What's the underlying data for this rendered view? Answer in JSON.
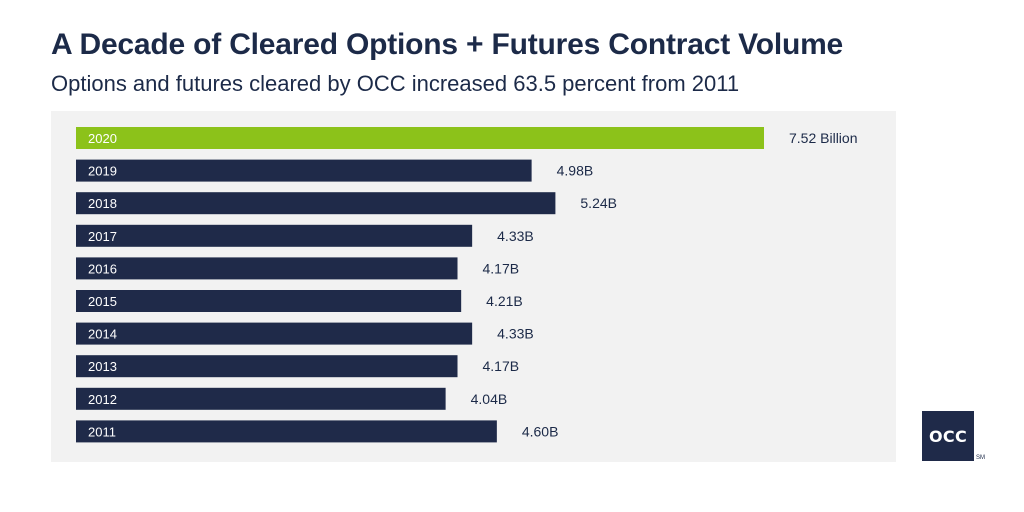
{
  "header": {
    "title": "A Decade of Cleared Options + Futures Contract Volume",
    "subtitle": "Options and futures cleared by OCC increased 63.5 percent from 2011"
  },
  "logo": {
    "text": "OCC",
    "mark": "SM"
  },
  "colors": {
    "highlight": "#8cc21a",
    "bar": "#1f2a49",
    "panel": "#f2f2f2",
    "text": "#1c2a48"
  },
  "chart_data": {
    "type": "bar",
    "orientation": "horizontal",
    "categories": [
      "2020",
      "2019",
      "2018",
      "2017",
      "2016",
      "2015",
      "2014",
      "2013",
      "2012",
      "2011"
    ],
    "values": [
      7.52,
      4.98,
      5.24,
      4.33,
      4.17,
      4.21,
      4.33,
      4.17,
      4.04,
      4.6
    ],
    "value_labels": [
      "7.52 Billion",
      "4.98B",
      "5.24B",
      "4.33B",
      "4.17B",
      "4.21B",
      "4.33B",
      "4.17B",
      "4.04B",
      "4.60B"
    ],
    "highlight_category": "2020",
    "unit": "Billion",
    "xlim": [
      0,
      7.52
    ],
    "grid": false,
    "legend": "none"
  }
}
